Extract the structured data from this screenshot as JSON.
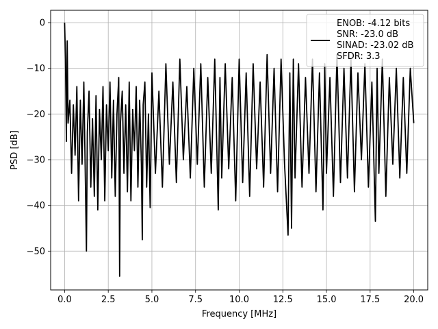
{
  "chart_data": {
    "type": "line",
    "xlabel": "Frequency [MHz]",
    "ylabel": "PSD [dB]",
    "xlim": [
      -0.8,
      20.8
    ],
    "ylim": [
      -58.5,
      2.7
    ],
    "x_ticks": [
      0.0,
      2.5,
      5.0,
      7.5,
      10.0,
      12.5,
      15.0,
      17.5,
      20.0
    ],
    "x_tick_labels": [
      "0.0",
      "2.5",
      "5.0",
      "7.5",
      "10.0",
      "12.5",
      "15.0",
      "17.5",
      "20.0"
    ],
    "y_ticks": [
      0,
      -10,
      -20,
      -30,
      -40,
      -50
    ],
    "y_tick_labels": [
      "0",
      "−10",
      "−20",
      "−30",
      "−40",
      "−50"
    ],
    "grid": true,
    "legend": {
      "placement": "upper-right",
      "lines": [
        "ENOB: -4.12 bits",
        "SNR: -23.0 dB",
        "SINAD: -23.02 dB",
        "SFDR: 3.3"
      ]
    },
    "series": [
      {
        "color": "#000000",
        "x": [
          0.0,
          0.05,
          0.1,
          0.15,
          0.2,
          0.3,
          0.4,
          0.5,
          0.6,
          0.7,
          0.8,
          0.9,
          1.0,
          1.1,
          1.2,
          1.25,
          1.3,
          1.4,
          1.5,
          1.6,
          1.7,
          1.8,
          1.9,
          2.0,
          2.1,
          2.2,
          2.3,
          2.4,
          2.5,
          2.6,
          2.7,
          2.8,
          2.9,
          3.0,
          3.1,
          3.15,
          3.2,
          3.3,
          3.4,
          3.5,
          3.6,
          3.7,
          3.8,
          3.9,
          4.0,
          4.1,
          4.2,
          4.3,
          4.4,
          4.45,
          4.5,
          4.6,
          4.7,
          4.8,
          4.9,
          5.0,
          5.2,
          5.4,
          5.6,
          5.8,
          6.0,
          6.2,
          6.4,
          6.6,
          6.8,
          7.0,
          7.2,
          7.4,
          7.6,
          7.8,
          8.0,
          8.2,
          8.4,
          8.6,
          8.8,
          8.9,
          9.0,
          9.2,
          9.4,
          9.6,
          9.8,
          10.0,
          10.2,
          10.4,
          10.6,
          10.8,
          11.0,
          11.2,
          11.4,
          11.6,
          11.8,
          12.0,
          12.2,
          12.4,
          12.6,
          12.8,
          12.9,
          13.0,
          13.1,
          13.2,
          13.4,
          13.6,
          13.8,
          14.0,
          14.2,
          14.4,
          14.6,
          14.8,
          14.9,
          15.0,
          15.2,
          15.4,
          15.6,
          15.8,
          16.0,
          16.2,
          16.4,
          16.6,
          16.8,
          17.0,
          17.2,
          17.4,
          17.6,
          17.8,
          17.9,
          18.0,
          18.2,
          18.4,
          18.6,
          18.8,
          19.0,
          19.2,
          19.4,
          19.6,
          19.8,
          20.0
        ],
        "y": [
          0.0,
          -8,
          -26,
          -4,
          -22,
          -17,
          -33,
          -18,
          -29,
          -14,
          -39,
          -17,
          -31,
          -13,
          -37,
          -50,
          -24,
          -15,
          -36,
          -21,
          -38,
          -16,
          -41,
          -19,
          -30,
          -14,
          -39,
          -18,
          -28,
          -13,
          -34,
          -17,
          -38,
          -20,
          -12,
          -55.5,
          -22,
          -15,
          -33,
          -18,
          -37,
          -13,
          -39,
          -19,
          -28,
          -14,
          -36,
          -17,
          -31,
          -47.5,
          -18,
          -13,
          -36,
          -20,
          -40.5,
          -11,
          -33,
          -15,
          -36,
          -9,
          -31,
          -13,
          -35,
          -8,
          -30,
          -14,
          -34,
          -10,
          -31,
          -9,
          -36,
          -12,
          -33,
          -8,
          -41,
          -12,
          -34,
          -9,
          -32,
          -12,
          -39,
          -8,
          -35,
          -11,
          -38,
          -9,
          -32,
          -13,
          -36,
          -7,
          -33,
          -10,
          -37,
          -8,
          -31,
          -46.5,
          -11,
          -45,
          -8,
          -34,
          -9,
          -36,
          -12,
          -33,
          -8,
          -37,
          -11,
          -41,
          -9,
          -33,
          -12,
          -38,
          -7,
          -35,
          -10,
          -34,
          -8,
          -37,
          -11,
          -30,
          -9,
          -36,
          -13,
          -43.5,
          -10,
          -33,
          -8,
          -38,
          -12,
          -31,
          -10,
          -34,
          -12,
          -33,
          -10,
          -22
        ]
      }
    ]
  }
}
